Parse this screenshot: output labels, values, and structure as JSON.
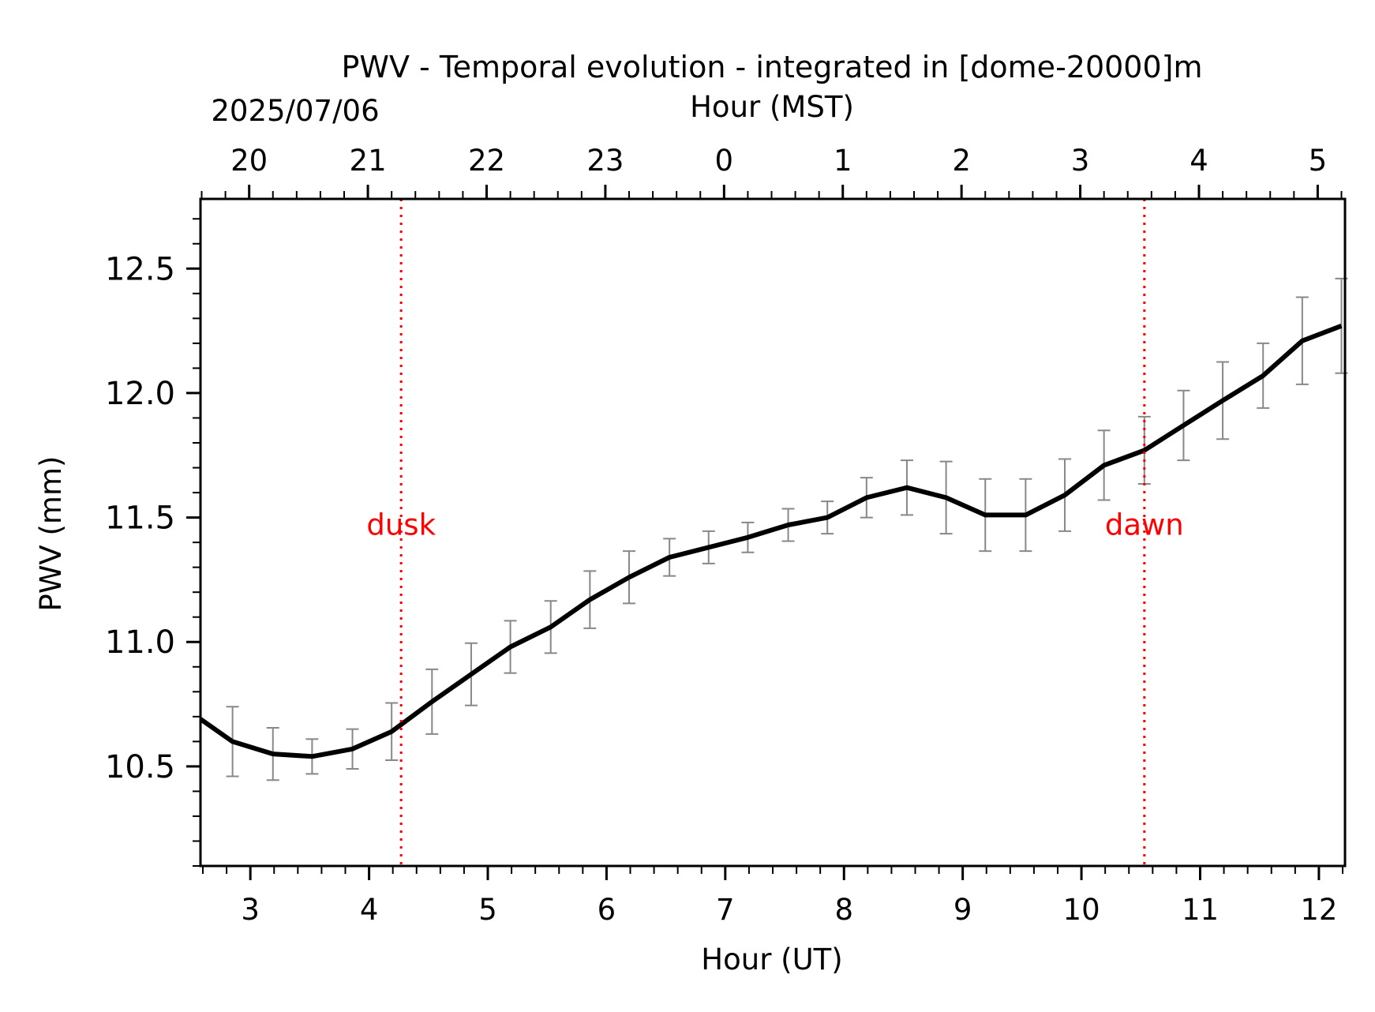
{
  "chart_data": {
    "type": "line",
    "title": "PWV - Temporal evolution - integrated in [dome-20000]m",
    "date_label": "2025/07/06",
    "xlabel": "Hour (UT)",
    "xlabel_top": "Hour (MST)",
    "ylabel": "PWV (mm)",
    "xlim": [
      2.58,
      12.22
    ],
    "ylim": [
      10.1,
      12.78
    ],
    "x_ticks": [
      3,
      4,
      5,
      6,
      7,
      8,
      9,
      10,
      11,
      12
    ],
    "x_tick_labels": [
      "3",
      "4",
      "5",
      "6",
      "7",
      "8",
      "9",
      "10",
      "11",
      "12"
    ],
    "top_ticks_ut": [
      2.99,
      3.99,
      4.99,
      5.99,
      6.99,
      7.99,
      8.99,
      9.99,
      10.99,
      11.99
    ],
    "top_tick_labels": [
      "20",
      "21",
      "22",
      "23",
      "0",
      "1",
      "2",
      "3",
      "4",
      "5"
    ],
    "y_ticks": [
      10.5,
      11.0,
      11.5,
      12.0,
      12.5
    ],
    "y_tick_labels": [
      "10.5",
      "11.0",
      "11.5",
      "12.0",
      "12.5"
    ],
    "grid": false,
    "series": [
      {
        "color": "#000000",
        "error_color": "#888888",
        "x": [
          2.58,
          2.85,
          3.19,
          3.52,
          3.86,
          4.19,
          4.53,
          4.86,
          5.19,
          5.53,
          5.86,
          6.19,
          6.53,
          6.86,
          7.19,
          7.53,
          7.86,
          8.19,
          8.53,
          8.86,
          9.19,
          9.53,
          9.86,
          10.19,
          10.53,
          10.86,
          11.19,
          11.53,
          11.86,
          12.19
        ],
        "y": [
          10.69,
          10.6,
          10.55,
          10.54,
          10.57,
          10.64,
          10.76,
          10.87,
          10.98,
          11.06,
          11.17,
          11.26,
          11.34,
          11.38,
          11.42,
          11.47,
          11.5,
          11.58,
          11.62,
          11.58,
          11.51,
          11.51,
          11.59,
          11.71,
          11.77,
          11.87,
          11.97,
          12.07,
          12.21,
          12.27
        ],
        "error": [
          null,
          0.14,
          0.105,
          0.07,
          0.08,
          0.115,
          0.13,
          0.125,
          0.105,
          0.105,
          0.115,
          0.105,
          0.075,
          0.065,
          0.06,
          0.065,
          0.065,
          0.08,
          0.11,
          0.145,
          0.145,
          0.145,
          0.145,
          0.14,
          0.135,
          0.14,
          0.155,
          0.13,
          0.175,
          0.19
        ]
      }
    ],
    "vlines": [
      {
        "label": "dusk",
        "x": 4.27,
        "color": "#ff0000"
      },
      {
        "label": "dawn",
        "x": 10.53,
        "color": "#ff0000"
      }
    ]
  }
}
